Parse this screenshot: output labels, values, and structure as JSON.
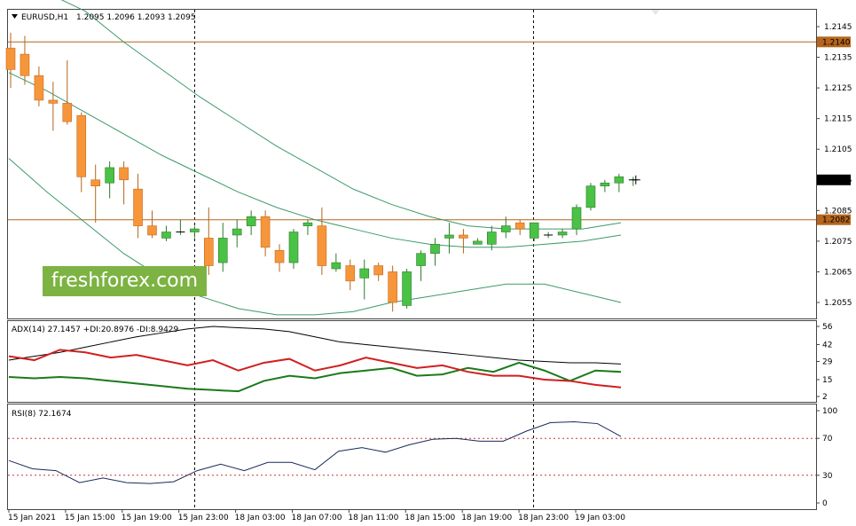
{
  "colors": {
    "bull": "#49c245",
    "bear": "#f7953a",
    "lineHi": "#b5651d",
    "bands": "#3c9a6a",
    "adx": "#000000",
    "plusdi": "#1a7a1a",
    "minusdi": "#d11f1f",
    "rsi": "#1a2a5a",
    "level": "#c43b3b"
  },
  "header": {
    "symbol": "EURUSD,H1",
    "ohlc": "1.2095 1.2096 1.2093 1.2095",
    "arrow_icon": "triangle-down-icon"
  },
  "watermark": "freshforex.com",
  "panels": {
    "adx": {
      "label": "ADX(14) 27.1457 +DI:20.8976 -DI:8.9429",
      "ticks": [
        "56",
        "42",
        "29",
        "15",
        "2"
      ]
    },
    "rsi": {
      "label": "RSI(8) 72.1674",
      "ticks": [
        "100",
        "70",
        "30",
        "0"
      ]
    }
  },
  "price_labels": {
    "high_line": "1.2140",
    "current": "1.2095",
    "low_line": "1.2082"
  },
  "price_ticks": [
    "1.2145",
    "1.2135",
    "1.2125",
    "1.2115",
    "1.2105",
    "1.2095",
    "1.2085",
    "1.2075",
    "1.2065",
    "1.2055"
  ],
  "time_labels": [
    "15 Jan 2021",
    "15 Jan 15:00",
    "15 Jan 19:00",
    "15 Jan 23:00",
    "18 Jan 03:00",
    "18 Jan 07:00",
    "18 Jan 11:00",
    "18 Jan 15:00",
    "18 Jan 19:00",
    "18 Jan 23:00",
    "19 Jan 03:00"
  ],
  "chart_data": {
    "type": "candlestick",
    "price_range": [
      1.205,
      1.215
    ],
    "candles": [
      [
        1.2138,
        1.2143,
        1.2125,
        1.2131
      ],
      [
        1.2136,
        1.2142,
        1.2126,
        1.2129
      ],
      [
        1.2129,
        1.2132,
        1.2119,
        1.2121
      ],
      [
        1.2121,
        1.2127,
        1.2111,
        1.212
      ],
      [
        1.212,
        1.2134,
        1.2113,
        1.2114
      ],
      [
        1.2116,
        1.2117,
        1.2091,
        1.2096
      ],
      [
        1.2095,
        1.21,
        1.2081,
        1.2093
      ],
      [
        1.2094,
        1.2101,
        1.2089,
        1.2099
      ],
      [
        1.2099,
        1.2101,
        1.2087,
        1.2095
      ],
      [
        1.2092,
        1.2097,
        1.2076,
        1.208
      ],
      [
        1.208,
        1.2085,
        1.2076,
        1.2077
      ],
      [
        1.2076,
        1.208,
        1.2075,
        1.2078
      ],
      [
        1.2078,
        1.2082,
        1.2077,
        1.2078
      ],
      [
        1.2078,
        1.208,
        1.2076,
        1.2079
      ],
      [
        1.2076,
        1.2086,
        1.2064,
        1.2067
      ],
      [
        1.2068,
        1.2081,
        1.2065,
        1.2076
      ],
      [
        1.2077,
        1.2082,
        1.2073,
        1.2079
      ],
      [
        1.208,
        1.2085,
        1.2077,
        1.2083
      ],
      [
        1.2083,
        1.2085,
        1.207,
        1.2073
      ],
      [
        1.2072,
        1.2074,
        1.2065,
        1.2068
      ],
      [
        1.2068,
        1.2079,
        1.2066,
        1.2078
      ],
      [
        1.208,
        1.2082,
        1.2077,
        1.2081
      ],
      [
        1.208,
        1.2086,
        1.2064,
        1.2067
      ],
      [
        1.2066,
        1.2071,
        1.2065,
        1.2068
      ],
      [
        1.2067,
        1.2069,
        1.2059,
        1.2062
      ],
      [
        1.2063,
        1.2069,
        1.2056,
        1.2066
      ],
      [
        1.2067,
        1.2068,
        1.2062,
        1.2064
      ],
      [
        1.2065,
        1.2067,
        1.2052,
        1.2055
      ],
      [
        1.2054,
        1.2066,
        1.2053,
        1.2065
      ],
      [
        1.2067,
        1.2072,
        1.2062,
        1.2071
      ],
      [
        1.2071,
        1.2076,
        1.2067,
        1.2074
      ],
      [
        1.2076,
        1.2081,
        1.2071,
        1.2077
      ],
      [
        1.2077,
        1.2079,
        1.2071,
        1.2076
      ],
      [
        1.2074,
        1.2076,
        1.2074,
        1.2075
      ],
      [
        1.2074,
        1.208,
        1.2072,
        1.2078
      ],
      [
        1.2078,
        1.2083,
        1.2076,
        1.208
      ],
      [
        1.2081,
        1.2082,
        1.2077,
        1.2079
      ],
      [
        1.2076,
        1.2081,
        1.2075,
        1.2081
      ],
      [
        1.2077,
        1.2078,
        1.2076,
        1.2077
      ],
      [
        1.2077,
        1.2079,
        1.2076,
        1.2078
      ],
      [
        1.2079,
        1.2087,
        1.2077,
        1.2086
      ],
      [
        1.2086,
        1.2094,
        1.2085,
        1.2093
      ],
      [
        1.2093,
        1.2095,
        1.2091,
        1.2094
      ],
      [
        1.2094,
        1.2097,
        1.2091,
        1.2096
      ],
      [
        1.2095,
        1.2096,
        1.2093,
        1.2095
      ]
    ],
    "bands": {
      "upper": [
        1.216,
        1.2156,
        1.215,
        1.214,
        1.2131,
        1.2122,
        1.2114,
        1.2106,
        1.2099,
        1.2092,
        1.2087,
        1.2083,
        1.208,
        1.2079,
        1.2079,
        1.2079,
        1.2081
      ],
      "middle": [
        1.213,
        1.2124,
        1.2117,
        1.211,
        1.2103,
        1.2097,
        1.2091,
        1.2086,
        1.2082,
        1.2079,
        1.2076,
        1.2074,
        1.2073,
        1.2073,
        1.2074,
        1.2075,
        1.2077
      ],
      "lower": [
        1.2102,
        1.2091,
        1.2081,
        1.2071,
        1.2063,
        1.2057,
        1.2053,
        1.2051,
        1.2051,
        1.2052,
        1.2055,
        1.2057,
        1.2059,
        1.2061,
        1.2061,
        1.2058,
        1.2055
      ]
    },
    "adx": {
      "adx": [
        30,
        33,
        36,
        40,
        44,
        48,
        51,
        54,
        56,
        55,
        54,
        52,
        48,
        44,
        42,
        40,
        38,
        36,
        34,
        32,
        30,
        29,
        28,
        28,
        27
      ],
      "plus_di": [
        17,
        16,
        17,
        16,
        14,
        12,
        10,
        8,
        7,
        6,
        14,
        18,
        16,
        20,
        22,
        24,
        18,
        19,
        24,
        21,
        28,
        22,
        14,
        22,
        21
      ],
      "minus_di": [
        33,
        30,
        38,
        36,
        32,
        34,
        30,
        26,
        30,
        22,
        28,
        31,
        22,
        26,
        32,
        28,
        24,
        26,
        21,
        18,
        18,
        15,
        14,
        11,
        9
      ]
    },
    "rsi": [
      46,
      37,
      35,
      22,
      27,
      22,
      21,
      23,
      35,
      42,
      35,
      44,
      44,
      36,
      56,
      60,
      55,
      63,
      69,
      70,
      67,
      67,
      78,
      87,
      88,
      86,
      72
    ]
  }
}
